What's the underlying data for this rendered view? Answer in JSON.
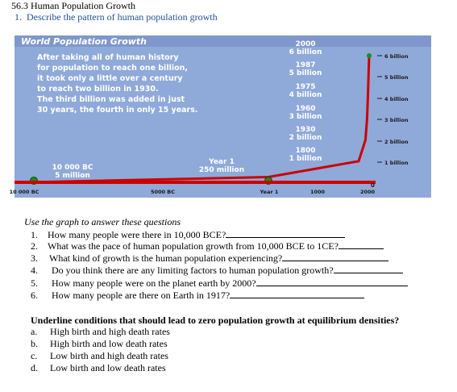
{
  "document": {
    "title": "56.3 Human Population Growth",
    "question_1": {
      "number": "1.",
      "text": "Describe the pattern of human population growth"
    }
  },
  "chart_data": {
    "type": "line",
    "title": "World Population Growth",
    "description_lines": [
      "After taking all of human history",
      "for population to reach one billion,",
      "it took only a little over a century",
      "to reach two billion in 1930.",
      "The third billion was added in just",
      "30 years, the fourth in only 15 years."
    ],
    "x_tick_labels": [
      "10 000 BC",
      "5000 BC",
      "Year 1",
      "1000",
      "2000"
    ],
    "y_tick_labels": [
      "6 billion",
      "5 billion",
      "4 billion",
      "3 billion",
      "2 billion",
      "1 billion",
      "0"
    ],
    "annotations": [
      {
        "year": "2000",
        "population": "6 billion"
      },
      {
        "year": "1987",
        "population": "5 billion"
      },
      {
        "year": "1975",
        "population": "4 billion"
      },
      {
        "year": "1960",
        "population": "3 billion"
      },
      {
        "year": "1930",
        "population": "2 billion"
      },
      {
        "year": "1800",
        "population": "1 billion"
      },
      {
        "year": "Year 1",
        "population": "250 million"
      },
      {
        "year": "10 000 BC",
        "population": "5 million"
      }
    ],
    "points": [
      {
        "x": -10000,
        "y": 0.005
      },
      {
        "x": 1,
        "y": 0.25
      },
      {
        "x": 1800,
        "y": 1
      },
      {
        "x": 1930,
        "y": 2
      },
      {
        "x": 1960,
        "y": 3
      },
      {
        "x": 1975,
        "y": 4
      },
      {
        "x": 1987,
        "y": 5
      },
      {
        "x": 2000,
        "y": 6
      }
    ],
    "colors": {
      "background": "#8fa9d9",
      "title_bar": "#8aa3d6",
      "line": "#cc0000",
      "points": "#1f8a1f",
      "text": "#ffffff"
    }
  },
  "questions": {
    "intro": "Use the graph to answer these questions",
    "items": [
      {
        "number": "1.",
        "text": "How many people were there in 10,000 BCE?"
      },
      {
        "number": "2.",
        "text": "What was the pace of human population growth from 10,000 BCE to 1CE?"
      },
      {
        "number": "3.",
        "text": "What kind of growth is the human population experiencing?"
      },
      {
        "number": "4.",
        "text": "Do you think there are any limiting factors to human population growth?"
      },
      {
        "number": "5.",
        "text": "How many people were on the planet earth by 2000?"
      },
      {
        "number": "6.",
        "text": "How many people are there on Earth in 1917?"
      }
    ]
  },
  "underline_section": {
    "heading": "Underline conditions that should lead to zero population growth at equilibrium densities?",
    "options": [
      {
        "letter": "a.",
        "text": "High birth and high death rates"
      },
      {
        "letter": "b.",
        "text": "High birth and low death rates"
      },
      {
        "letter": "c.",
        "text": "Low birth and high death rates"
      },
      {
        "letter": "d.",
        "text": "Low birth and low death rates"
      }
    ]
  }
}
